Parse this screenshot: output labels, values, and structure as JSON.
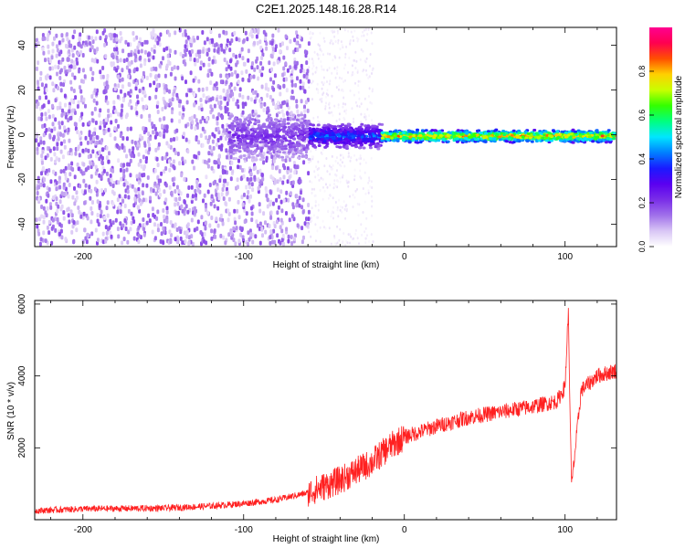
{
  "title": "C2E1.2025.148.16.28.R14",
  "chart_data": [
    {
      "type": "heatmap",
      "xlabel": "Height of straight line (km)",
      "ylabel": "Frequency (Hz)",
      "xlim": [
        -230,
        132
      ],
      "ylim": [
        -50,
        48
      ],
      "xticks": [
        -200,
        -100,
        0,
        100
      ],
      "yticks": [
        -40,
        -20,
        0,
        20,
        40
      ],
      "colorbar": {
        "label": "Normalized spectral amplitude",
        "range": [
          0,
          1
        ],
        "ticks": [
          "0.0",
          "0.2",
          "0.4",
          "0.6",
          "0.8"
        ],
        "colors": [
          "#ffffff",
          "#d9c6f5",
          "#a070ea",
          "#7a2ee8",
          "#5a00f0",
          "#1a1aff",
          "#0080ff",
          "#00e6ff",
          "#00ff80",
          "#33ff00",
          "#c8ff00",
          "#ffd000",
          "#ff5000",
          "#ff0050",
          "#ff0090"
        ]
      },
      "regions": [
        {
          "x_range": [
            -230,
            -60
          ],
          "freq_spread": 48,
          "amplitude": 0.15,
          "description": "broadband noise"
        },
        {
          "x_range": [
            -60,
            -20
          ],
          "freq_spread": 48,
          "amplitude": 0.03,
          "description": "sparse noise"
        },
        {
          "x_range": [
            -110,
            -60
          ],
          "freq_spread": 12,
          "amplitude": 0.25
        },
        {
          "x_range": [
            -60,
            -15
          ],
          "freq_spread": 6,
          "amplitude": 0.45
        },
        {
          "x_range": [
            -15,
            132
          ],
          "freq_spread": 3,
          "amplitude": 0.9
        }
      ]
    },
    {
      "type": "line",
      "xlabel": "Height of straight line (km)",
      "ylabel": "SNR (10 * v/v)",
      "xlim": [
        -230,
        132
      ],
      "ylim": [
        0,
        6100
      ],
      "xticks": [
        -200,
        -100,
        0,
        100
      ],
      "yticks": [
        2000,
        4000,
        6000
      ],
      "series": [
        {
          "color": "#ff2020",
          "x": [
            -230,
            -200,
            -150,
            -120,
            -100,
            -80,
            -60,
            -40,
            -20,
            -10,
            0,
            20,
            40,
            60,
            80,
            95,
            100,
            102,
            104,
            110,
            120,
            132
          ],
          "y": [
            250,
            300,
            320,
            380,
            450,
            550,
            750,
            1100,
            1600,
            2000,
            2300,
            2600,
            2850,
            3000,
            3150,
            3300,
            3700,
            5800,
            900,
            3600,
            4000,
            4150
          ]
        }
      ]
    }
  ]
}
